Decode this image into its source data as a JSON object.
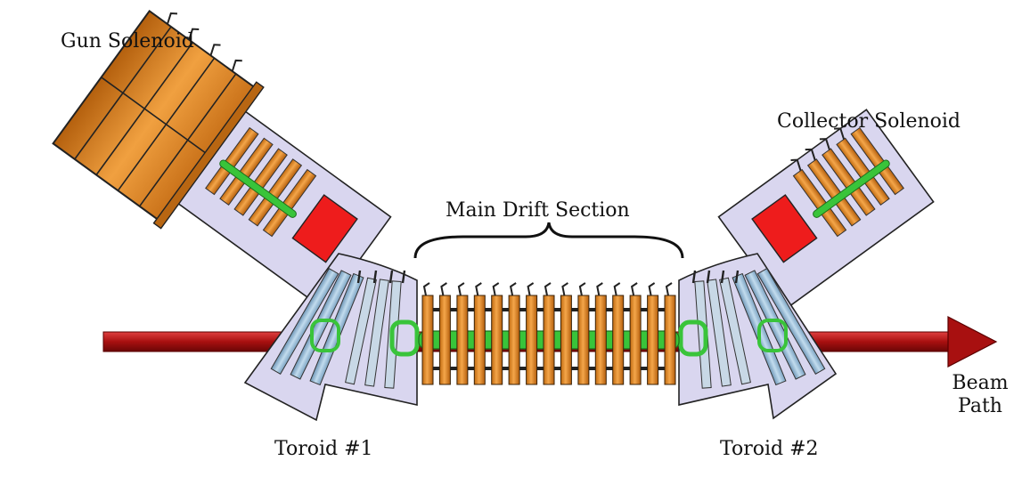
{
  "labels": {
    "gun_solenoid": "Gun Solenoid",
    "collector_solenoid": "Collector Solenoid",
    "main_drift_section": "Main Drift Section",
    "toroid_1": "Toroid #1",
    "toroid_2": "Toroid #2",
    "beam_path_line1": "Beam",
    "beam_path_line2": "Path"
  },
  "colors": {
    "coil_orange": "#e8902a",
    "coil_dark": "#8a4a0a",
    "housing_lavender": "#d9d6ef",
    "beam_red": "#b01818",
    "pipe_green": "#39c43a",
    "toroid_blue": "#9ec2dd",
    "block_red": "#ee1c1c"
  },
  "drift_coil_count": 15
}
